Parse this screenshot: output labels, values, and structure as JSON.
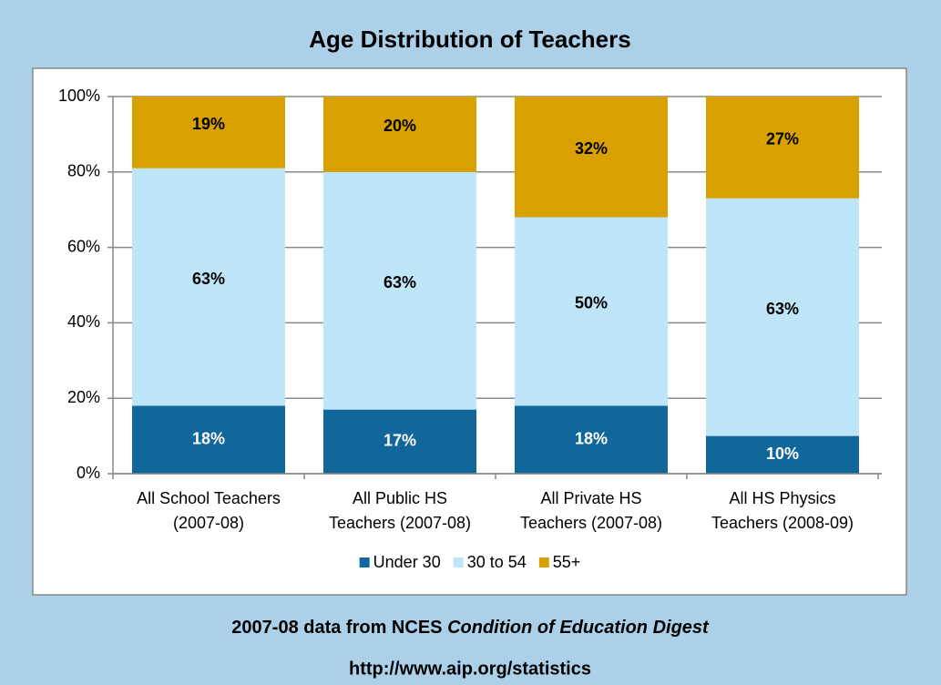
{
  "chart_data": {
    "type": "stacked_bar",
    "title": "Age Distribution of Teachers",
    "categories": [
      [
        "All School Teachers",
        "(2007-08)"
      ],
      [
        "All Public HS",
        "Teachers (2007-08)"
      ],
      [
        "All Private HS",
        "Teachers (2007-08)"
      ],
      [
        "All HS Physics",
        "Teachers (2008-09)"
      ]
    ],
    "series": [
      {
        "name": "Under 30",
        "color": "#11679a",
        "values": [
          18,
          17,
          18,
          10
        ],
        "value_labels": [
          "18%",
          "17%",
          "18%",
          "10%"
        ]
      },
      {
        "name": "30 to 54",
        "color": "#bfe6f8",
        "values": [
          63,
          63,
          50,
          63
        ],
        "value_labels": [
          "63%",
          "63%",
          "50%",
          "63%"
        ]
      },
      {
        "name": "55+",
        "color": "#d9a100",
        "values": [
          19,
          20,
          32,
          27
        ],
        "value_labels": [
          "19%",
          "20%",
          "32%",
          "27%"
        ]
      }
    ],
    "ylim": [
      0,
      100
    ],
    "yticks": [
      {
        "value": 0,
        "label": "0%"
      },
      {
        "value": 20,
        "label": "20%"
      },
      {
        "value": 40,
        "label": "40%"
      },
      {
        "value": 60,
        "label": "60%"
      },
      {
        "value": 80,
        "label": "80%"
      },
      {
        "value": 100,
        "label": "100%"
      }
    ],
    "grid": true,
    "legend": "bottom",
    "source": {
      "text": "2007-08 data from NCES",
      "italic": "Condition of Education Digest"
    },
    "url": "http://www.aip.org/statistics"
  }
}
